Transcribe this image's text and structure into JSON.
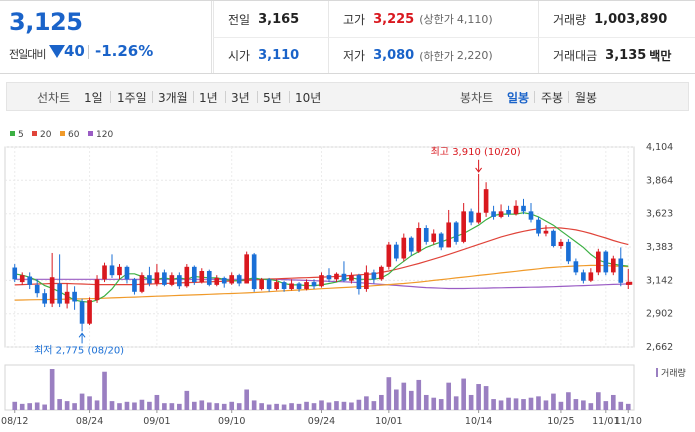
{
  "quote": {
    "price": "3,125",
    "change_label": "전일대비",
    "change": "40",
    "change_pct": "-1.26%",
    "prev_close_label": "전일",
    "prev_close": "3,165",
    "high_label": "고가",
    "high": "3,225",
    "upper_limit_label": "(상한가",
    "upper_limit": "4,110)",
    "volume_label": "거래량",
    "volume": "1,003,890",
    "open_label": "시가",
    "open": "3,110",
    "low_label": "저가",
    "low": "3,080",
    "lower_limit_label": "(하한가",
    "lower_limit": "2,220)",
    "turnover_label": "거래대금",
    "turnover": "3,135",
    "turnover_unit": "백만"
  },
  "toolbar": {
    "line_chart_label": "선차트",
    "periods": [
      "1일",
      "1주일",
      "3개월",
      "1년",
      "3년",
      "5년",
      "10년"
    ],
    "candle_chart_label": "봉차트",
    "candle_periods": [
      "일봉",
      "주봉",
      "월봉"
    ],
    "selected_candle_period": "일봉"
  },
  "colors": {
    "up": "#d9181f",
    "down": "#1a6fd6",
    "ma5": "#3cb043",
    "ma20": "#e0443a",
    "ma60": "#f09a2a",
    "ma120": "#9a5cc4",
    "volume": "#9a7fc1"
  },
  "chart_data": {
    "type": "candlestick",
    "legend": [
      "5",
      "20",
      "60",
      "120"
    ],
    "volume_label": "거래량",
    "ylim": [
      2662,
      4104
    ],
    "y_ticks": [
      "4,104",
      "3,864",
      "3,623",
      "3,383",
      "3,142",
      "2,902",
      "2,662"
    ],
    "x_labels": [
      "08/12",
      "08/24",
      "09/01",
      "09/10",
      "09/24",
      "10/01",
      "10/14",
      "10/25",
      "11/01",
      "11/10"
    ],
    "max_annotation": "최고 3,910 (10/20)",
    "min_annotation": "최저 2,775 (08/20)",
    "candles": [
      {
        "o": 3235,
        "c": 3150,
        "h": 3260,
        "l": 3130,
        "v": 12
      },
      {
        "o": 3130,
        "c": 3180,
        "h": 3200,
        "l": 3110,
        "v": 9
      },
      {
        "o": 3170,
        "c": 3110,
        "h": 3200,
        "l": 3080,
        "v": 10
      },
      {
        "o": 3110,
        "c": 3050,
        "h": 3150,
        "l": 3020,
        "v": 11
      },
      {
        "o": 3050,
        "c": 2975,
        "h": 3080,
        "l": 2950,
        "v": 8
      },
      {
        "o": 2975,
        "c": 3165,
        "h": 3340,
        "l": 2950,
        "v": 60
      },
      {
        "o": 3120,
        "c": 2975,
        "h": 3330,
        "l": 2950,
        "v": 16
      },
      {
        "o": 2975,
        "c": 3060,
        "h": 3120,
        "l": 2940,
        "v": 13
      },
      {
        "o": 3060,
        "c": 2990,
        "h": 3100,
        "l": 2930,
        "v": 10
      },
      {
        "o": 2990,
        "c": 2830,
        "h": 3010,
        "l": 2775,
        "v": 24
      },
      {
        "o": 2830,
        "c": 3000,
        "h": 3020,
        "l": 2820,
        "v": 20
      },
      {
        "o": 3000,
        "c": 3150,
        "h": 3180,
        "l": 2980,
        "v": 14
      },
      {
        "o": 3150,
        "c": 3250,
        "h": 3270,
        "l": 3130,
        "v": 56
      },
      {
        "o": 3250,
        "c": 3180,
        "h": 3330,
        "l": 3160,
        "v": 13
      },
      {
        "o": 3180,
        "c": 3240,
        "h": 3260,
        "l": 3150,
        "v": 10
      },
      {
        "o": 3240,
        "c": 3150,
        "h": 3250,
        "l": 3120,
        "v": 12
      },
      {
        "o": 3150,
        "c": 3060,
        "h": 3160,
        "l": 3040,
        "v": 11
      },
      {
        "o": 3060,
        "c": 3180,
        "h": 3200,
        "l": 3050,
        "v": 15
      },
      {
        "o": 3180,
        "c": 3120,
        "h": 3240,
        "l": 3100,
        "v": 12
      },
      {
        "o": 3120,
        "c": 3200,
        "h": 3260,
        "l": 3100,
        "v": 22
      },
      {
        "o": 3200,
        "c": 3110,
        "h": 3220,
        "l": 3100,
        "v": 10
      },
      {
        "o": 3110,
        "c": 3180,
        "h": 3200,
        "l": 3100,
        "v": 10
      },
      {
        "o": 3180,
        "c": 3100,
        "h": 3200,
        "l": 3080,
        "v": 9
      },
      {
        "o": 3100,
        "c": 3240,
        "h": 3260,
        "l": 3090,
        "v": 28
      },
      {
        "o": 3240,
        "c": 3130,
        "h": 3250,
        "l": 3110,
        "v": 12
      },
      {
        "o": 3130,
        "c": 3210,
        "h": 3230,
        "l": 3120,
        "v": 14
      },
      {
        "o": 3210,
        "c": 3110,
        "h": 3220,
        "l": 3100,
        "v": 11
      },
      {
        "o": 3110,
        "c": 3160,
        "h": 3180,
        "l": 3100,
        "v": 10
      },
      {
        "o": 3160,
        "c": 3120,
        "h": 3170,
        "l": 3090,
        "v": 9
      },
      {
        "o": 3120,
        "c": 3180,
        "h": 3200,
        "l": 3110,
        "v": 12
      },
      {
        "o": 3180,
        "c": 3120,
        "h": 3190,
        "l": 3100,
        "v": 10
      },
      {
        "o": 3120,
        "c": 3330,
        "h": 3350,
        "l": 3120,
        "v": 30
      },
      {
        "o": 3330,
        "c": 3080,
        "h": 3340,
        "l": 3060,
        "v": 14
      },
      {
        "o": 3080,
        "c": 3150,
        "h": 3160,
        "l": 3070,
        "v": 10
      },
      {
        "o": 3150,
        "c": 3080,
        "h": 3160,
        "l": 3060,
        "v": 8
      },
      {
        "o": 3080,
        "c": 3130,
        "h": 3150,
        "l": 3070,
        "v": 9
      },
      {
        "o": 3130,
        "c": 3080,
        "h": 3140,
        "l": 3060,
        "v": 8
      },
      {
        "o": 3080,
        "c": 3120,
        "h": 3150,
        "l": 3070,
        "v": 10
      },
      {
        "o": 3120,
        "c": 3080,
        "h": 3130,
        "l": 3060,
        "v": 9
      },
      {
        "o": 3080,
        "c": 3130,
        "h": 3150,
        "l": 3070,
        "v": 12
      },
      {
        "o": 3130,
        "c": 3100,
        "h": 3150,
        "l": 3080,
        "v": 10
      },
      {
        "o": 3100,
        "c": 3180,
        "h": 3200,
        "l": 3090,
        "v": 14
      },
      {
        "o": 3180,
        "c": 3150,
        "h": 3230,
        "l": 3130,
        "v": 11
      },
      {
        "o": 3150,
        "c": 3190,
        "h": 3200,
        "l": 3130,
        "v": 13
      },
      {
        "o": 3190,
        "c": 3140,
        "h": 3280,
        "l": 3130,
        "v": 12
      },
      {
        "o": 3140,
        "c": 3180,
        "h": 3200,
        "l": 3120,
        "v": 11
      },
      {
        "o": 3180,
        "c": 3080,
        "h": 3190,
        "l": 3040,
        "v": 15
      },
      {
        "o": 3080,
        "c": 3200,
        "h": 3250,
        "l": 3060,
        "v": 20
      },
      {
        "o": 3200,
        "c": 3150,
        "h": 3220,
        "l": 3120,
        "v": 13
      },
      {
        "o": 3150,
        "c": 3240,
        "h": 3250,
        "l": 3140,
        "v": 22
      },
      {
        "o": 3240,
        "c": 3400,
        "h": 3420,
        "l": 3220,
        "v": 48
      },
      {
        "o": 3400,
        "c": 3300,
        "h": 3420,
        "l": 3280,
        "v": 30
      },
      {
        "o": 3300,
        "c": 3450,
        "h": 3480,
        "l": 3280,
        "v": 40
      },
      {
        "o": 3450,
        "c": 3350,
        "h": 3460,
        "l": 3320,
        "v": 28
      },
      {
        "o": 3350,
        "c": 3520,
        "h": 3560,
        "l": 3340,
        "v": 44
      },
      {
        "o": 3520,
        "c": 3420,
        "h": 3540,
        "l": 3400,
        "v": 22
      },
      {
        "o": 3420,
        "c": 3480,
        "h": 3510,
        "l": 3400,
        "v": 18
      },
      {
        "o": 3480,
        "c": 3380,
        "h": 3490,
        "l": 3360,
        "v": 16
      },
      {
        "o": 3380,
        "c": 3560,
        "h": 3650,
        "l": 3380,
        "v": 40
      },
      {
        "o": 3560,
        "c": 3420,
        "h": 3570,
        "l": 3400,
        "v": 20
      },
      {
        "o": 3420,
        "c": 3640,
        "h": 3700,
        "l": 3410,
        "v": 46
      },
      {
        "o": 3640,
        "c": 3560,
        "h": 3660,
        "l": 3540,
        "v": 22
      },
      {
        "o": 3560,
        "c": 3630,
        "h": 3910,
        "l": 3550,
        "v": 38
      },
      {
        "o": 3630,
        "c": 3800,
        "h": 3850,
        "l": 3600,
        "v": 35
      },
      {
        "o": 3640,
        "c": 3600,
        "h": 3680,
        "l": 3580,
        "v": 16
      },
      {
        "o": 3600,
        "c": 3640,
        "h": 3690,
        "l": 3590,
        "v": 14
      },
      {
        "o": 3650,
        "c": 3620,
        "h": 3680,
        "l": 3600,
        "v": 18
      },
      {
        "o": 3620,
        "c": 3680,
        "h": 3720,
        "l": 3610,
        "v": 17
      },
      {
        "o": 3680,
        "c": 3640,
        "h": 3730,
        "l": 3620,
        "v": 16
      },
      {
        "o": 3640,
        "c": 3580,
        "h": 3700,
        "l": 3560,
        "v": 18
      },
      {
        "o": 3580,
        "c": 3480,
        "h": 3600,
        "l": 3460,
        "v": 20
      },
      {
        "o": 3480,
        "c": 3500,
        "h": 3540,
        "l": 3460,
        "v": 14
      },
      {
        "o": 3500,
        "c": 3390,
        "h": 3510,
        "l": 3380,
        "v": 24
      },
      {
        "o": 3390,
        "c": 3420,
        "h": 3440,
        "l": 3370,
        "v": 12
      },
      {
        "o": 3420,
        "c": 3280,
        "h": 3440,
        "l": 3260,
        "v": 26
      },
      {
        "o": 3280,
        "c": 3200,
        "h": 3300,
        "l": 3180,
        "v": 16
      },
      {
        "o": 3200,
        "c": 3140,
        "h": 3220,
        "l": 3120,
        "v": 14
      },
      {
        "o": 3140,
        "c": 3200,
        "h": 3230,
        "l": 3130,
        "v": 10
      },
      {
        "o": 3200,
        "c": 3350,
        "h": 3370,
        "l": 3180,
        "v": 26
      },
      {
        "o": 3350,
        "c": 3200,
        "h": 3360,
        "l": 3180,
        "v": 13
      },
      {
        "o": 3200,
        "c": 3300,
        "h": 3320,
        "l": 3180,
        "v": 22
      },
      {
        "o": 3300,
        "c": 3125,
        "h": 3380,
        "l": 3100,
        "v": 12
      },
      {
        "o": 3110,
        "c": 3125,
        "h": 3225,
        "l": 3080,
        "v": 9
      }
    ],
    "ma5": [
      3190,
      3180,
      3165,
      3140,
      3105,
      3085,
      3060,
      3030,
      3000,
      2990,
      2985,
      3000,
      3030,
      3080,
      3150,
      3190,
      3190,
      3170,
      3150,
      3150,
      3160,
      3150,
      3160,
      3150,
      3170,
      3165,
      3160,
      3160,
      3150,
      3140,
      3140,
      3150,
      3160,
      3150,
      3150,
      3140,
      3120,
      3110,
      3110,
      3105,
      3105,
      3110,
      3120,
      3130,
      3150,
      3160,
      3150,
      3150,
      3150,
      3160,
      3190,
      3240,
      3280,
      3320,
      3350,
      3380,
      3400,
      3420,
      3440,
      3460,
      3480,
      3510,
      3540,
      3580,
      3610,
      3620,
      3620,
      3620,
      3630,
      3620,
      3600,
      3570,
      3540,
      3500,
      3460,
      3420,
      3380,
      3330,
      3290,
      3270,
      3260,
      3250,
      3245
    ],
    "ma20": [
      3110,
      3112,
      3114,
      3116,
      3118,
      3120,
      3120,
      3120,
      3118,
      3116,
      3114,
      3112,
      3112,
      3112,
      3112,
      3112,
      3112,
      3114,
      3116,
      3118,
      3120,
      3122,
      3124,
      3126,
      3128,
      3130,
      3132,
      3134,
      3136,
      3138,
      3140,
      3142,
      3146,
      3150,
      3152,
      3154,
      3156,
      3158,
      3160,
      3162,
      3164,
      3166,
      3168,
      3170,
      3174,
      3178,
      3182,
      3186,
      3190,
      3200,
      3210,
      3222,
      3236,
      3250,
      3264,
      3280,
      3296,
      3312,
      3330,
      3348,
      3366,
      3384,
      3402,
      3420,
      3438,
      3456,
      3470,
      3484,
      3496,
      3506,
      3514,
      3520,
      3522,
      3520,
      3514,
      3506,
      3494,
      3480,
      3464,
      3448,
      3430,
      3414,
      3400
    ],
    "ma60": [
      3000,
      3001,
      3002,
      3003,
      3004,
      3005,
      3006,
      3007,
      3008,
      3009,
      3010,
      3012,
      3014,
      3016,
      3018,
      3020,
      3022,
      3024,
      3026,
      3028,
      3030,
      3032,
      3034,
      3036,
      3038,
      3040,
      3042,
      3044,
      3046,
      3048,
      3050,
      3052,
      3055,
      3058,
      3061,
      3064,
      3067,
      3070,
      3073,
      3076,
      3079,
      3082,
      3085,
      3088,
      3091,
      3094,
      3097,
      3100,
      3104,
      3108,
      3112,
      3116,
      3120,
      3125,
      3130,
      3136,
      3142,
      3148,
      3154,
      3160,
      3166,
      3172,
      3178,
      3184,
      3190,
      3196,
      3202,
      3208,
      3214,
      3220,
      3226,
      3232,
      3236,
      3240,
      3243,
      3246,
      3248,
      3250,
      3250,
      3248,
      3246,
      3244,
      3242
    ],
    "ma120": [
      3150,
      3150,
      3150,
      3150,
      3150,
      3150,
      3150,
      3150,
      3150,
      3150,
      3150,
      3150,
      3150,
      3150,
      3150,
      3150,
      3150,
      3150,
      3150,
      3150,
      3150,
      3150,
      3150,
      3150,
      3150,
      3150,
      3150,
      3150,
      3150,
      3150,
      3150,
      3150,
      3150,
      3150,
      3150,
      3150,
      3148,
      3146,
      3144,
      3142,
      3140,
      3138,
      3136,
      3134,
      3132,
      3130,
      3126,
      3122,
      3118,
      3114,
      3110,
      3106,
      3102,
      3098,
      3094,
      3090,
      3088,
      3086,
      3084,
      3084,
      3084,
      3085,
      3086,
      3087,
      3088,
      3089,
      3090,
      3091,
      3092,
      3093,
      3094,
      3095,
      3097,
      3099,
      3101,
      3103,
      3105,
      3107,
      3109,
      3111,
      3113,
      3115,
      3117
    ]
  }
}
